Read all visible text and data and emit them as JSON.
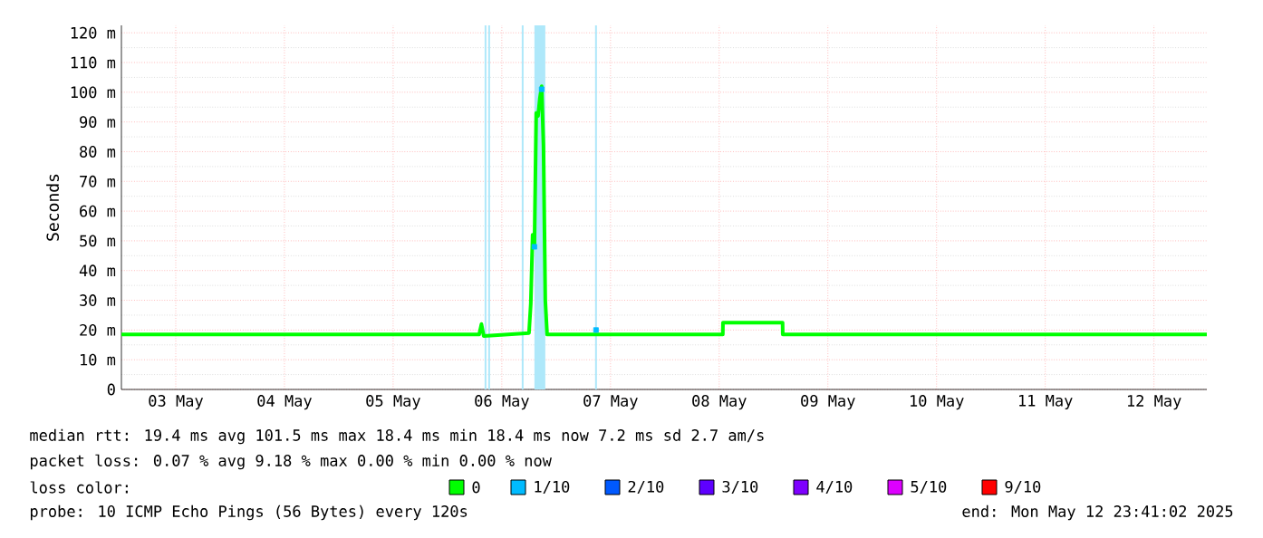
{
  "chart_data": {
    "type": "line",
    "ylabel": "Seconds",
    "xlim": [
      "2025-05-03T00:00",
      "2025-05-12T23:41"
    ],
    "xticks": [
      {
        "value": "2025-05-03T12:00",
        "label": "03 May"
      },
      {
        "value": "2025-05-04T12:00",
        "label": "04 May"
      },
      {
        "value": "2025-05-05T12:00",
        "label": "05 May"
      },
      {
        "value": "2025-05-06T12:00",
        "label": "06 May"
      },
      {
        "value": "2025-05-07T12:00",
        "label": "07 May"
      },
      {
        "value": "2025-05-08T12:00",
        "label": "08 May"
      },
      {
        "value": "2025-05-09T12:00",
        "label": "09 May"
      },
      {
        "value": "2025-05-10T12:00",
        "label": "10 May"
      },
      {
        "value": "2025-05-11T12:00",
        "label": "11 May"
      },
      {
        "value": "2025-05-12T12:00",
        "label": "12 May"
      }
    ],
    "ylim": [
      0,
      122.5
    ],
    "yticks": [
      0,
      {
        "value": 10,
        "label": "10 m"
      },
      {
        "value": 20,
        "label": "20 m"
      },
      {
        "value": 30,
        "label": "30 m"
      },
      {
        "value": 40,
        "label": "40 m"
      },
      {
        "value": 50,
        "label": "50 m"
      },
      {
        "value": 60,
        "label": "60 m"
      },
      {
        "value": 70,
        "label": "70 m"
      },
      {
        "value": 80,
        "label": "80 m"
      },
      {
        "value": 90,
        "label": "90 m"
      },
      {
        "value": 100,
        "label": "100 m"
      },
      {
        "value": 110,
        "label": "110 m"
      },
      {
        "value": 120,
        "label": "120 m"
      }
    ],
    "grid": true,
    "legend": "bottom",
    "legend_title": "loss color:",
    "bands": [
      {
        "axis": "x",
        "from": "2025-05-06T08:12",
        "to": "2025-05-06T08:36",
        "color": "#aee8fa"
      },
      {
        "axis": "x",
        "from": "2025-05-06T09:00",
        "to": "2025-05-06T09:24",
        "color": "#aee8fa"
      },
      {
        "axis": "x",
        "from": "2025-05-06T16:24",
        "to": "2025-05-06T16:48",
        "color": "#aee8fa"
      },
      {
        "axis": "x",
        "from": "2025-05-06T19:12",
        "to": "2025-05-06T21:36",
        "color": "#aee8fa"
      },
      {
        "axis": "x",
        "from": "2025-05-07T08:36",
        "to": "2025-05-07T09:00",
        "color": "#aee8fa"
      }
    ],
    "series": [
      {
        "name": "0",
        "color": "#00ff00",
        "x": [
          "2025-05-03T00:00",
          "2025-05-06T07:00",
          "2025-05-06T07:30",
          "2025-05-06T08:00",
          "2025-05-06T18:00",
          "2025-05-06T18:24",
          "2025-05-06T18:48",
          "2025-05-06T19:12",
          "2025-05-06T19:36",
          "2025-05-06T20:00",
          "2025-05-06T20:24",
          "2025-05-06T20:48",
          "2025-05-06T21:12",
          "2025-05-06T21:36",
          "2025-05-06T22:00",
          "2025-05-08T12:48",
          "2025-05-08T12:50",
          "2025-05-09T02:00",
          "2025-05-09T02:02",
          "2025-05-12T23:41"
        ],
        "values": [
          18.5,
          18.5,
          22,
          18,
          19,
          29,
          52,
          48,
          93,
          92,
          98,
          102,
          82,
          30,
          18.5,
          18.5,
          22.5,
          22.5,
          18.5,
          18.5
        ]
      },
      {
        "name": "1/10",
        "color": "#00bbff",
        "type": "scatter",
        "marker": "square",
        "x": [
          "2025-05-06T19:12",
          "2025-05-06T20:48",
          "2025-05-07T08:48"
        ],
        "values": [
          48,
          101,
          20
        ]
      },
      {
        "name": "2/10",
        "color": "#0059ff",
        "type": "scatter",
        "marker": "square"
      },
      {
        "name": "3/10",
        "color": "#5e00ff",
        "type": "scatter",
        "marker": "square"
      },
      {
        "name": "4/10",
        "color": "#7e00ff",
        "type": "scatter",
        "marker": "square"
      },
      {
        "name": "5/10",
        "color": "#dd00ff",
        "type": "scatter",
        "marker": "square"
      },
      {
        "name": "9/10",
        "color": "#ff0000",
        "type": "scatter",
        "marker": "square"
      }
    ],
    "annotations": [
      "median rtt:  19.4 ms avg  101.5 ms max  18.4 ms min  18.4 ms now  7.2 ms sd  2.7   am/s",
      "packet loss: 0.07 % avg  9.18 % max  0.00 % min  0.00 % now",
      "probe:       10 ICMP Echo Pings (56 Bytes) every 120s",
      "end: Mon May 12 23:41:02 2025"
    ]
  }
}
